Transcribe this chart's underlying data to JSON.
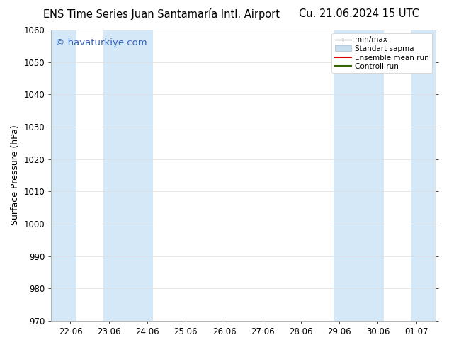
{
  "title_left": "ENS Time Series Juan Santamaría Intl. Airport",
  "title_right": "Cu. 21.06.2024 15 UTC",
  "ylabel": "Surface Pressure (hPa)",
  "ylim": [
    970,
    1060
  ],
  "yticks": [
    970,
    980,
    990,
    1000,
    1010,
    1020,
    1030,
    1040,
    1050,
    1060
  ],
  "xtick_labels": [
    "22.06",
    "23.06",
    "24.06",
    "25.06",
    "26.06",
    "27.06",
    "28.06",
    "29.06",
    "30.06",
    "01.07"
  ],
  "xtick_positions": [
    0,
    1,
    2,
    3,
    4,
    5,
    6,
    7,
    8,
    9
  ],
  "xlim": [
    -0.5,
    9.5
  ],
  "shaded_bands": [
    {
      "xmin": -0.5,
      "xmax": 0.15,
      "color": "#d4e8f8"
    },
    {
      "xmin": 0.85,
      "xmax": 2.15,
      "color": "#d4e8f8"
    },
    {
      "xmin": 6.85,
      "xmax": 8.15,
      "color": "#d4e8f8"
    },
    {
      "xmin": 8.85,
      "xmax": 9.5,
      "color": "#d4e8f8"
    }
  ],
  "watermark_text": "© havaturkiye.com",
  "watermark_color": "#3366bb",
  "background_color": "#ffffff",
  "plot_bg_color": "#ffffff",
  "grid_color": "#dddddd",
  "title_fontsize": 10.5,
  "axis_label_fontsize": 9,
  "tick_fontsize": 8.5
}
